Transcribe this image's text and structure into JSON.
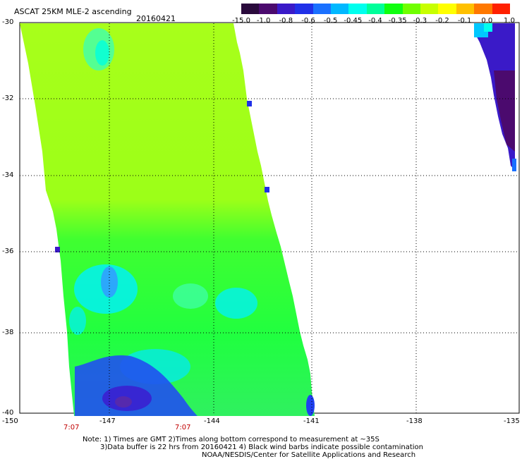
{
  "title": "ASCAT 25KM MLE-2 ascending",
  "date": "20160421",
  "colorbar": {
    "labels": [
      "-15.0",
      "-1.0",
      "-0.8",
      "-0.6",
      "-0.5",
      "-0.45",
      "-0.4",
      "-0.35",
      "-0.3",
      "-0.2",
      "-0.1",
      "0.0",
      "1.0"
    ],
    "colors": [
      "#2a0a3c",
      "#4b0a6e",
      "#3a1ac8",
      "#2030e8",
      "#1a70ff",
      "#00b8ff",
      "#00ffee",
      "#00ff9a",
      "#10ff10",
      "#70ff00",
      "#c8ff00",
      "#ffff00",
      "#ffc000",
      "#ff7800",
      "#ff2000"
    ]
  },
  "y_axis": {
    "labels": [
      "-30",
      "-32",
      "-34",
      "-36",
      "-38",
      "-40"
    ]
  },
  "x_axis": {
    "labels": [
      "-150",
      "-147",
      "-144",
      "-141",
      "-138",
      "-135"
    ]
  },
  "times": [
    "7:07",
    "7:07"
  ],
  "notes": [
    "Note: 1) Times are GMT 2)Times along bottom correspond to measurement at ~35S",
    "3)Data buffer is 22 hrs from 20160421 4) Black wind barbs indicate possible contamination",
    "NOAA/NESDIS/Center for Satellite Applications and Research"
  ]
}
